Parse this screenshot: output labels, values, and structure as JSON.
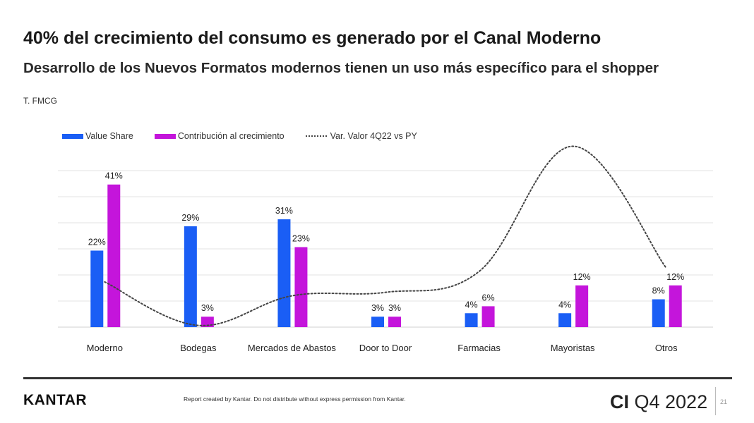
{
  "header": {
    "title": "40% del crecimiento del consumo es generado por el Canal Moderno",
    "subtitle": "Desarrollo de los Nuevos Formatos modernos tienen un uso más específico para el shopper",
    "tag": "T. FMCG"
  },
  "chart_data": {
    "type": "bar",
    "title": "",
    "xlabel": "",
    "ylabel": "",
    "categories": [
      "Moderno",
      "Bodegas",
      "Mercados de Abastos",
      "Door to Door",
      "Farmacias",
      "Mayoristas",
      "Otros"
    ],
    "series": [
      {
        "name": "Value Share",
        "type": "bar",
        "color": "#1a5ef5",
        "values": [
          22,
          29,
          31,
          3,
          4,
          4,
          8
        ],
        "labels": [
          "22%",
          "29%",
          "31%",
          "3%",
          "4%",
          "4%",
          "8%"
        ]
      },
      {
        "name": "Contribución al crecimiento",
        "type": "bar",
        "color": "#c415db",
        "values": [
          41,
          3,
          23,
          3,
          6,
          12,
          12
        ],
        "labels": [
          "41%",
          "3%",
          "23%",
          "3%",
          "6%",
          "12%",
          "12%"
        ]
      },
      {
        "name": "Var. Valor 4Q22 vs PY",
        "type": "line",
        "style": "dotted",
        "color": "#444444",
        "values": [
          13,
          0.5,
          9,
          10,
          16,
          52,
          17
        ]
      }
    ],
    "ylim": [
      0,
      45
    ],
    "grid": true,
    "legend": "top-left"
  },
  "footer": {
    "logo": "KANTAR",
    "disclaimer": "Report created by Kantar. Do not distribute without express permission from Kantar.",
    "brand_bold": "CI",
    "brand_rest": " Q4 2022",
    "page_number": "21"
  }
}
